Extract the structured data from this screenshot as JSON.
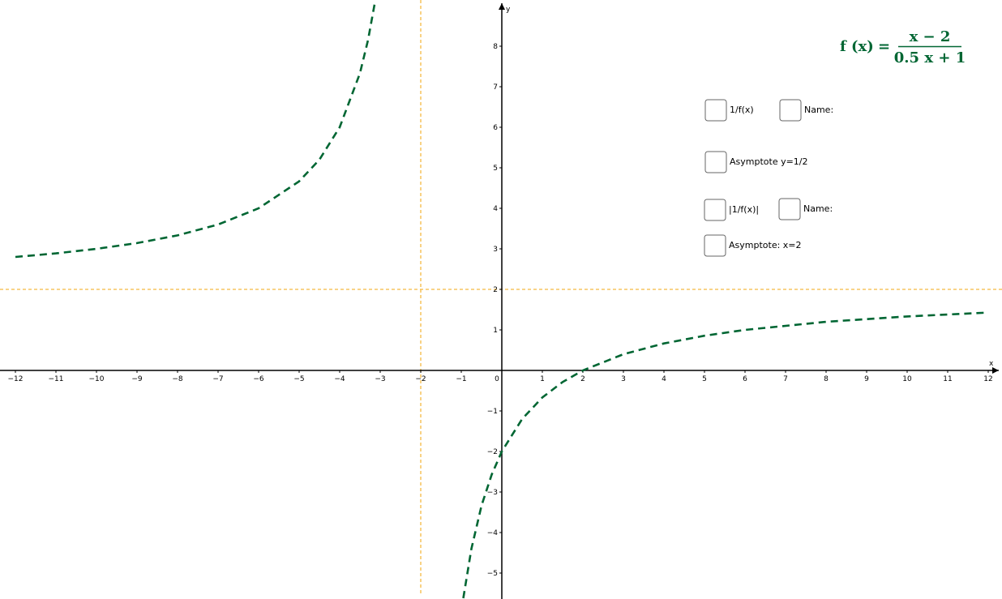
{
  "chart_data": {
    "type": "line",
    "x_label": "x",
    "y_label": "y",
    "xlim": [
      -12.38,
      12.34
    ],
    "ylim": [
      -5.64,
      9.14
    ],
    "xticks": [
      {
        "value": -12,
        "label": "−12"
      },
      {
        "value": -11,
        "label": "−11"
      },
      {
        "value": -10,
        "label": "−10"
      },
      {
        "value": -9,
        "label": "−9"
      },
      {
        "value": -8,
        "label": "−8"
      },
      {
        "value": -7,
        "label": "−7"
      },
      {
        "value": -6,
        "label": "−6"
      },
      {
        "value": -5,
        "label": "−5"
      },
      {
        "value": -4,
        "label": "−4"
      },
      {
        "value": -3,
        "label": "−3"
      },
      {
        "value": -2,
        "label": "−2"
      },
      {
        "value": -1,
        "label": "−1"
      },
      0,
      1,
      2,
      3,
      4,
      5,
      6,
      7,
      8,
      9,
      10,
      11,
      12
    ],
    "yticks": [
      {
        "value": -5,
        "label": "−5"
      },
      {
        "value": -4,
        "label": "−4"
      },
      {
        "value": -3,
        "label": "−3"
      },
      {
        "value": -2,
        "label": "−2"
      },
      {
        "value": -1,
        "label": "−1"
      },
      1,
      2,
      3,
      4,
      5,
      6,
      7,
      8
    ],
    "x": [
      -12,
      -11,
      -10,
      -9,
      -8,
      -7,
      -6,
      -5,
      -4.5,
      -4,
      -3.5,
      -3.3,
      -3.12,
      -2,
      -0.95,
      -0.75,
      -0.5,
      -0.25,
      0,
      0.5,
      1,
      1.5,
      2,
      3,
      4,
      5,
      6,
      8,
      10,
      12
    ],
    "series": [
      {
        "color": "#006633",
        "values": [
          2.8,
          2.889,
          3,
          3.143,
          3.333,
          3.6,
          4,
          4.667,
          5.2,
          6,
          7.333,
          8.154,
          9.14,
          null,
          -5.62,
          -4.4,
          -3.333,
          -2.571,
          -2,
          -1.2,
          -0.667,
          -0.286,
          0,
          0.4,
          0.667,
          0.857,
          1,
          1.2,
          1.333,
          1.429
        ]
      }
    ],
    "asymptotes": {
      "x": -2,
      "y": 2,
      "color": "#f5b942"
    },
    "formula": {
      "lhs": "f (x)",
      "eq": "=",
      "numerator": "x − 2",
      "denominator": "0.5 x + 1"
    },
    "controls": [
      {
        "label": "1/f(x)"
      },
      {
        "label": "Name:"
      },
      {
        "label": "Asymptote y=1/2"
      },
      {
        "label": "|1/f(x)|"
      },
      {
        "label": "Name:"
      },
      {
        "label": "Asymptote: x=2"
      }
    ]
  }
}
